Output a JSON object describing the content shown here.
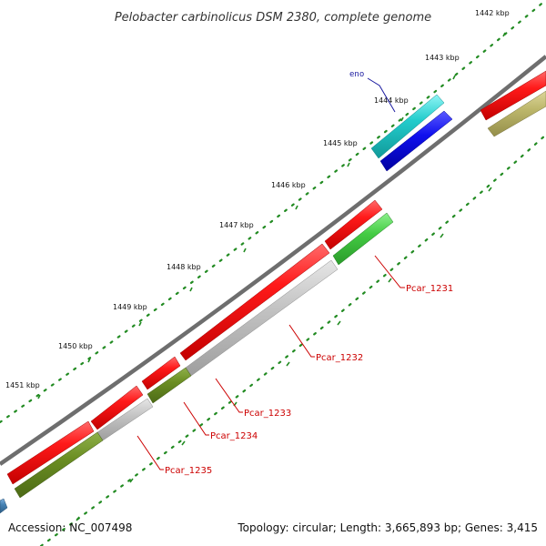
{
  "title": "Pelobacter carbinolicus DSM 2380, complete genome",
  "footer": {
    "accession": "Accession: NC_007498",
    "stats": "Topology: circular; Length: 3,665,893 bp; Genes: 3,415"
  },
  "ticks": [
    "1442 kbp",
    "1443 kbp",
    "1444 kbp",
    "1445 kbp",
    "1446 kbp",
    "1447 kbp",
    "1448 kbp",
    "1449 kbp",
    "1450 kbp",
    "1451 kbp"
  ],
  "genes": {
    "eno": "eno",
    "pcar_1231": "Pcar_1231",
    "pcar_1232": "Pcar_1232",
    "pcar_1233": "Pcar_1233",
    "pcar_1234": "Pcar_1234",
    "pcar_1235": "Pcar_1235"
  },
  "colors": {
    "backbone": "#7a7a7a",
    "forward_cds": "#ee1111",
    "blue_cds": "#1111dd",
    "cyan_feature": "#22cccc",
    "grey_feature": "#bdbdbd",
    "olive_feature": "#6b8e23",
    "green_feature": "#44cc44",
    "khaki_feature": "#bdb76b",
    "steel_feature": "#4682b4",
    "dots": "#228b22"
  }
}
